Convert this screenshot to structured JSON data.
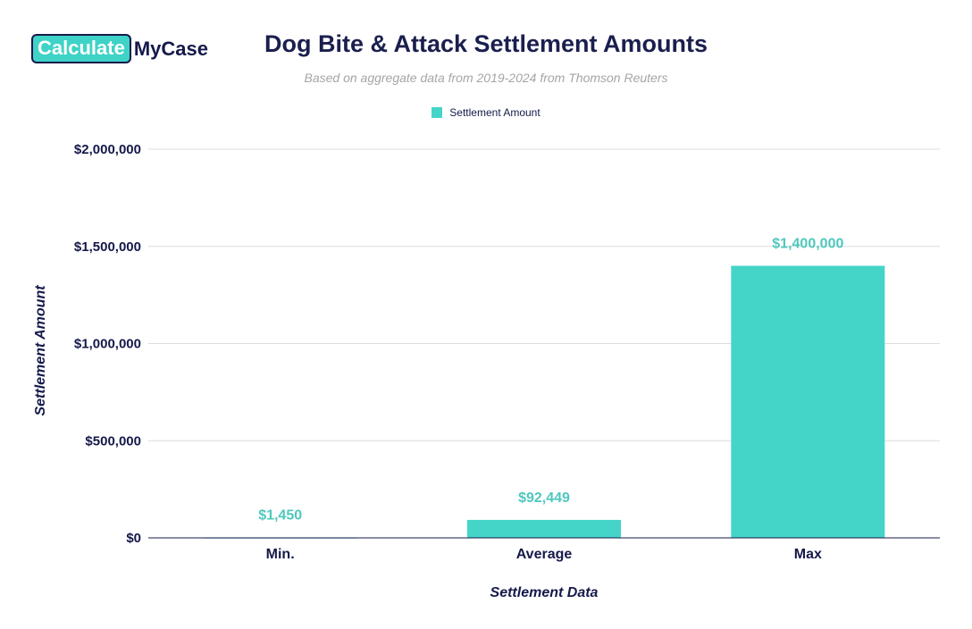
{
  "logo": {
    "part1": "Calculate",
    "part2": "MyCase"
  },
  "chart_data": {
    "type": "bar",
    "title": "Dog Bite & Attack Settlement Amounts",
    "subtitle": "Based on aggregate data from 2019-2024 from Thomson Reuters",
    "categories": [
      "Min.",
      "Average",
      "Max"
    ],
    "series": [
      {
        "name": "Settlement Amount",
        "values": [
          1450,
          92449,
          1400000
        ],
        "color": "#45d4c8"
      }
    ],
    "data_labels": [
      "$1,450",
      "$92,449",
      "$1,400,000"
    ],
    "xlabel": "Settlement Data",
    "ylabel": "Settlement Amount",
    "ylim": [
      0,
      2000000
    ],
    "yticks": [
      0,
      500000,
      1000000,
      1500000,
      2000000
    ],
    "ytick_labels": [
      "$0",
      "$500,000",
      "$1,000,000",
      "$1,500,000",
      "$2,000,000"
    ],
    "grid": true,
    "legend_position": "top-center"
  }
}
